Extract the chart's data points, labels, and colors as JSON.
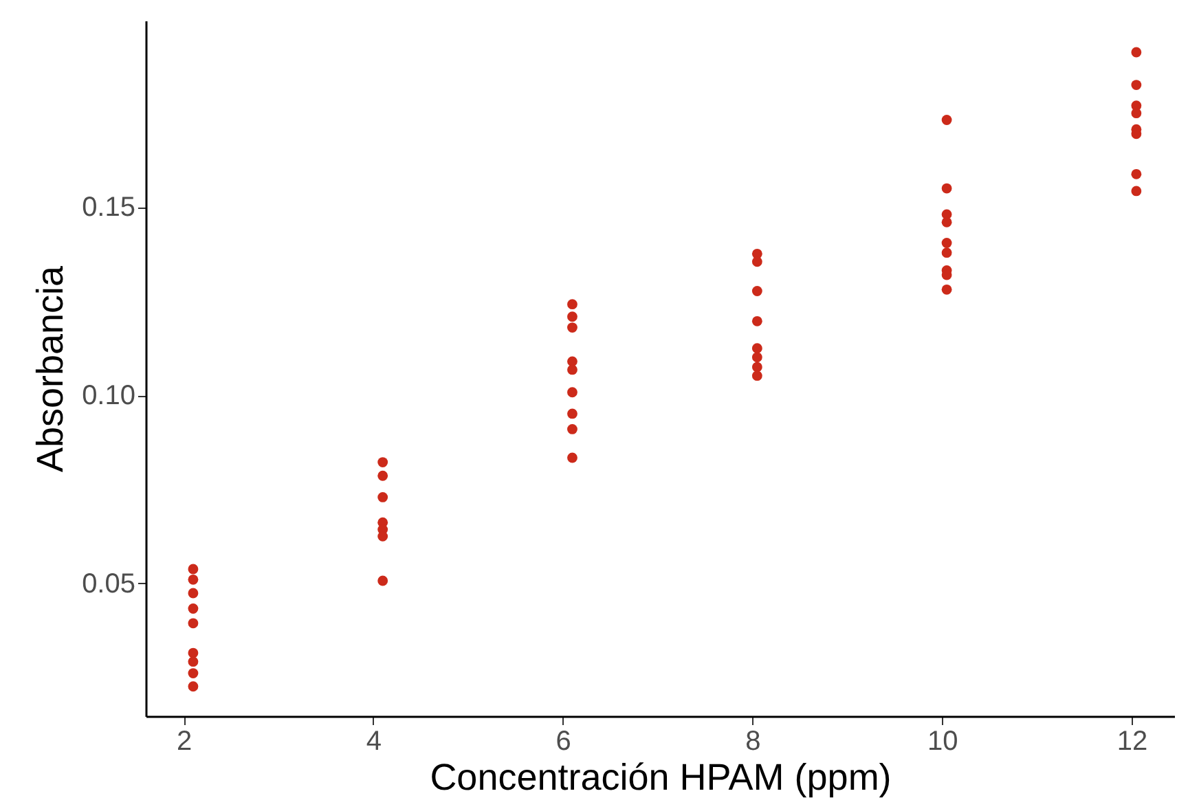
{
  "chart_data": {
    "type": "scatter",
    "xlabel": "Concentración HPAM (ppm)",
    "ylabel": "Absorbancia",
    "xlim": [
      1.6,
      12.45
    ],
    "xticks": [
      2,
      4,
      6,
      8,
      10,
      12
    ],
    "ylim": [
      0.0147,
      0.1996
    ],
    "yticks": [
      {
        "value": 0.05,
        "label": "0.05"
      },
      {
        "value": 0.1,
        "label": "0.10"
      },
      {
        "value": 0.15,
        "label": "0.15"
      }
    ],
    "grid": false,
    "marker": "circle",
    "series": [
      {
        "color": "#cc2a1a",
        "x": [
          2.1,
          2.1,
          2.1,
          2.1,
          2.1,
          2.1,
          2.1,
          2.1,
          2.1,
          4.1,
          4.1,
          4.1,
          4.1,
          4.1,
          4.1,
          4.1,
          6.1,
          6.1,
          6.1,
          6.1,
          6.1,
          6.1,
          6.1,
          6.1,
          6.1,
          8.05,
          8.05,
          8.05,
          8.05,
          8.05,
          8.05,
          8.05,
          8.05,
          10.05,
          10.05,
          10.05,
          10.05,
          10.05,
          10.05,
          10.05,
          10.05,
          10.05,
          12.05,
          12.05,
          12.05,
          12.05,
          12.05,
          12.05,
          12.05,
          12.05
        ],
        "values": [
          0.0538,
          0.051,
          0.0474,
          0.0433,
          0.0394,
          0.0315,
          0.0292,
          0.0261,
          0.0226,
          0.0822,
          0.0786,
          0.0729,
          0.0662,
          0.0643,
          0.0625,
          0.0507,
          0.1242,
          0.1209,
          0.118,
          0.109,
          0.1068,
          0.1008,
          0.0951,
          0.091,
          0.0834,
          0.1376,
          0.1355,
          0.1277,
          0.1197,
          0.1125,
          0.1101,
          0.1075,
          0.1052,
          0.1732,
          0.155,
          0.1481,
          0.146,
          0.1405,
          0.1379,
          0.1332,
          0.132,
          0.1281,
          0.1912,
          0.1825,
          0.177,
          0.175,
          0.1707,
          0.1695,
          0.1588,
          0.1543
        ]
      }
    ]
  }
}
